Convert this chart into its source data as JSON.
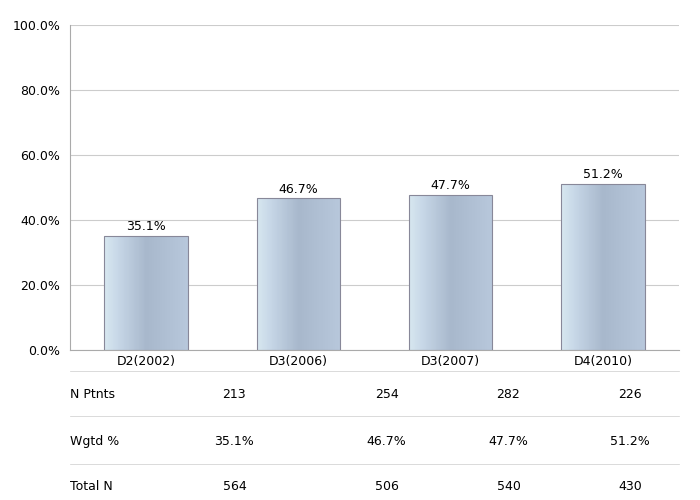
{
  "categories": [
    "D2(2002)",
    "D3(2006)",
    "D3(2007)",
    "D4(2010)"
  ],
  "values": [
    35.1,
    46.7,
    47.7,
    51.2
  ],
  "n_ptnts": [
    213,
    254,
    282,
    226
  ],
  "wgtd_pct": [
    "35.1%",
    "46.7%",
    "47.7%",
    "51.2%"
  ],
  "total_n": [
    564,
    506,
    540,
    430
  ],
  "ylim": [
    0,
    100
  ],
  "yticks": [
    0,
    20,
    40,
    60,
    80,
    100
  ],
  "ytick_labels": [
    "0.0%",
    "20.0%",
    "40.0%",
    "60.0%",
    "80.0%",
    "100.0%"
  ],
  "label_fontsize": 9,
  "tick_fontsize": 9,
  "table_fontsize": 9,
  "background_color": "#ffffff",
  "grid_color": "#cccccc",
  "bar_width": 0.55,
  "row_labels": [
    "N Ptnts",
    "Wgtd %",
    "Total N"
  ]
}
